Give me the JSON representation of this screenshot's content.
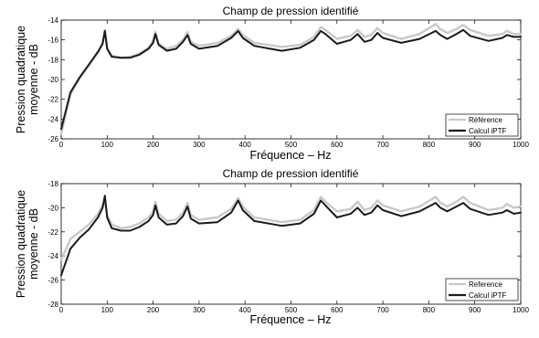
{
  "figure": {
    "charts": [
      {
        "title": "Champ de pression identifié",
        "xlabel": "Fréquence  –  Hz",
        "ylabel_lines": [
          "Pression quadratique",
          "moyenne  -  dB"
        ],
        "legend": [
          "Référence",
          "Calcul iPTF"
        ]
      },
      {
        "title": "Champ de pression identifié",
        "xlabel": "Fréquence  –  Hz",
        "ylabel_lines": [
          "Pression quadratique",
          "moyenne  -  dB"
        ],
        "legend": [
          "Reference",
          "Calcul iPTF"
        ]
      }
    ]
  },
  "colors": {
    "reference": "#c8c8c8",
    "calcul": "#1a1a1a",
    "axis": "#000000"
  },
  "chart_data": [
    {
      "type": "line",
      "title": "Champ de pression identifié",
      "xlabel": "Fréquence  –  Hz",
      "ylabel": "Pression quadratique moyenne  -  dB",
      "xlim": [
        0,
        1000
      ],
      "ylim": [
        -26,
        -14
      ],
      "xticks": [
        0,
        100,
        200,
        300,
        400,
        500,
        600,
        700,
        800,
        900,
        1000
      ],
      "yticks": [
        -26,
        -24,
        -22,
        -20,
        -18,
        -16,
        -14
      ],
      "grid": false,
      "legend_position": "bottom-right",
      "series": [
        {
          "name": "Référence",
          "x": [
            0,
            20,
            40,
            60,
            80,
            90,
            95,
            100,
            110,
            130,
            150,
            170,
            190,
            200,
            205,
            212,
            230,
            250,
            265,
            275,
            282,
            300,
            340,
            370,
            385,
            395,
            420,
            480,
            520,
            550,
            565,
            575,
            600,
            630,
            645,
            660,
            675,
            688,
            700,
            740,
            780,
            815,
            825,
            840,
            860,
            875,
            890,
            930,
            960,
            970,
            985,
            1000
          ],
          "y": [
            -25.5,
            -21.5,
            -19.9,
            -18.6,
            -17.3,
            -16.3,
            -15.0,
            -16.8,
            -17.6,
            -17.8,
            -17.7,
            -17.4,
            -16.8,
            -16.1,
            -15.2,
            -16.4,
            -16.9,
            -16.6,
            -16.0,
            -15.2,
            -16.2,
            -16.6,
            -16.3,
            -15.6,
            -14.9,
            -15.5,
            -16.3,
            -16.7,
            -16.5,
            -15.7,
            -14.7,
            -15.0,
            -15.9,
            -15.6,
            -15.0,
            -15.7,
            -15.5,
            -14.8,
            -15.3,
            -15.9,
            -15.4,
            -14.4,
            -14.9,
            -15.3,
            -14.9,
            -14.5,
            -15.0,
            -15.6,
            -15.4,
            -15.1,
            -15.4,
            -15.4
          ]
        },
        {
          "name": "Calcul iPTF",
          "x": [
            0,
            20,
            40,
            60,
            80,
            90,
            95,
            100,
            110,
            130,
            150,
            170,
            190,
            200,
            205,
            212,
            230,
            250,
            265,
            275,
            282,
            300,
            340,
            370,
            385,
            395,
            420,
            480,
            520,
            550,
            565,
            575,
            600,
            630,
            645,
            660,
            675,
            688,
            700,
            740,
            780,
            815,
            825,
            840,
            860,
            875,
            890,
            930,
            960,
            970,
            985,
            1000
          ],
          "y": [
            -25.0,
            -21.3,
            -19.8,
            -18.5,
            -17.2,
            -16.4,
            -15.1,
            -16.9,
            -17.7,
            -17.8,
            -17.8,
            -17.5,
            -16.9,
            -16.3,
            -15.4,
            -16.5,
            -17.1,
            -16.9,
            -16.2,
            -15.5,
            -16.4,
            -16.9,
            -16.6,
            -15.8,
            -15.1,
            -15.8,
            -16.6,
            -17.1,
            -16.8,
            -16.0,
            -15.1,
            -15.4,
            -16.4,
            -16.0,
            -15.4,
            -16.2,
            -16.0,
            -15.3,
            -15.8,
            -16.3,
            -15.9,
            -15.1,
            -15.5,
            -15.9,
            -15.4,
            -15.0,
            -15.6,
            -16.1,
            -15.8,
            -15.5,
            -15.7,
            -15.7
          ]
        }
      ]
    },
    {
      "type": "line",
      "title": "Champ de pression identifié",
      "xlabel": "Fréquence  –  Hz",
      "ylabel": "Pression quadratique moyenne  -  dB",
      "xlim": [
        0,
        1000
      ],
      "ylim": [
        -28,
        -18
      ],
      "xticks": [
        0,
        100,
        200,
        300,
        400,
        500,
        600,
        700,
        800,
        900,
        1000
      ],
      "yticks": [
        -28,
        -26,
        -24,
        -22,
        -20,
        -18
      ],
      "grid": false,
      "legend_position": "bottom-right",
      "series": [
        {
          "name": "Reference",
          "x": [
            0,
            20,
            40,
            60,
            80,
            90,
            95,
            100,
            110,
            130,
            150,
            170,
            190,
            200,
            205,
            212,
            230,
            250,
            265,
            275,
            282,
            300,
            340,
            370,
            385,
            395,
            420,
            480,
            520,
            550,
            565,
            575,
            600,
            630,
            645,
            660,
            675,
            688,
            700,
            740,
            780,
            815,
            825,
            840,
            860,
            875,
            890,
            930,
            960,
            970,
            985,
            1000
          ],
          "y": [
            -24.3,
            -22.6,
            -22.0,
            -21.4,
            -20.5,
            -19.8,
            -19.4,
            -20.6,
            -21.4,
            -21.7,
            -21.6,
            -21.3,
            -20.8,
            -20.3,
            -19.5,
            -20.5,
            -21.1,
            -21.0,
            -20.4,
            -19.6,
            -20.6,
            -21.0,
            -20.8,
            -20.1,
            -19.2,
            -19.9,
            -20.8,
            -21.2,
            -21.0,
            -20.2,
            -19.1,
            -19.5,
            -20.3,
            -20.1,
            -19.5,
            -20.2,
            -20.0,
            -19.4,
            -19.8,
            -20.3,
            -19.9,
            -19.1,
            -19.6,
            -19.9,
            -19.5,
            -19.1,
            -19.6,
            -20.2,
            -20.0,
            -19.7,
            -20.0,
            -19.9
          ]
        },
        {
          "name": "Calcul iPTF",
          "x": [
            0,
            20,
            40,
            60,
            80,
            90,
            95,
            100,
            110,
            130,
            150,
            170,
            190,
            200,
            205,
            212,
            230,
            250,
            265,
            275,
            282,
            300,
            340,
            370,
            385,
            395,
            420,
            480,
            520,
            550,
            565,
            575,
            600,
            630,
            645,
            660,
            675,
            688,
            700,
            740,
            780,
            815,
            825,
            840,
            860,
            875,
            890,
            930,
            960,
            970,
            985,
            1000
          ],
          "y": [
            -25.6,
            -23.4,
            -22.5,
            -21.8,
            -20.8,
            -20.0,
            -19.0,
            -20.8,
            -21.7,
            -21.9,
            -21.9,
            -21.6,
            -21.1,
            -20.6,
            -19.8,
            -20.8,
            -21.4,
            -21.3,
            -20.7,
            -19.9,
            -20.9,
            -21.3,
            -21.2,
            -20.4,
            -19.4,
            -20.2,
            -21.1,
            -21.5,
            -21.3,
            -20.5,
            -19.4,
            -19.8,
            -20.8,
            -20.5,
            -20.0,
            -20.6,
            -20.4,
            -19.8,
            -20.2,
            -20.7,
            -20.3,
            -19.6,
            -20.0,
            -20.3,
            -19.9,
            -19.6,
            -20.1,
            -20.6,
            -20.4,
            -20.2,
            -20.5,
            -20.4
          ]
        }
      ]
    }
  ]
}
